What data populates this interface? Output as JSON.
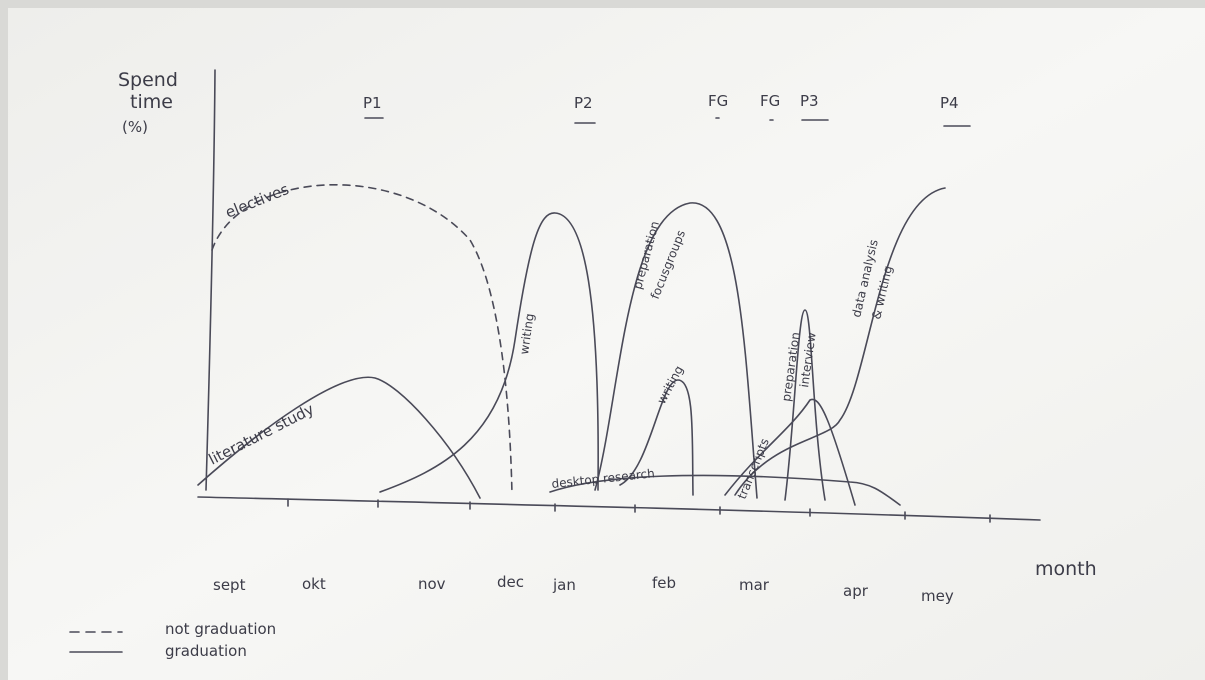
{
  "y_axis_label": [
    "Spend",
    "time",
    "(%)"
  ],
  "x_axis_label": "month",
  "months": [
    "sept",
    "okt",
    "nov",
    "dec",
    "jan",
    "feb",
    "mar",
    "apr",
    "mey"
  ],
  "milestones": [
    "P1",
    "P2",
    "FG",
    "FG",
    "P3",
    "P4"
  ],
  "curve_labels": [
    "electives",
    "literature study",
    "writing",
    "preparation",
    "focusgroups",
    "writing",
    "desktop research",
    "transcripts",
    "preparation",
    "interview",
    "data analysis",
    "& writing"
  ],
  "legend": [
    "not graduation",
    "graduation"
  ]
}
